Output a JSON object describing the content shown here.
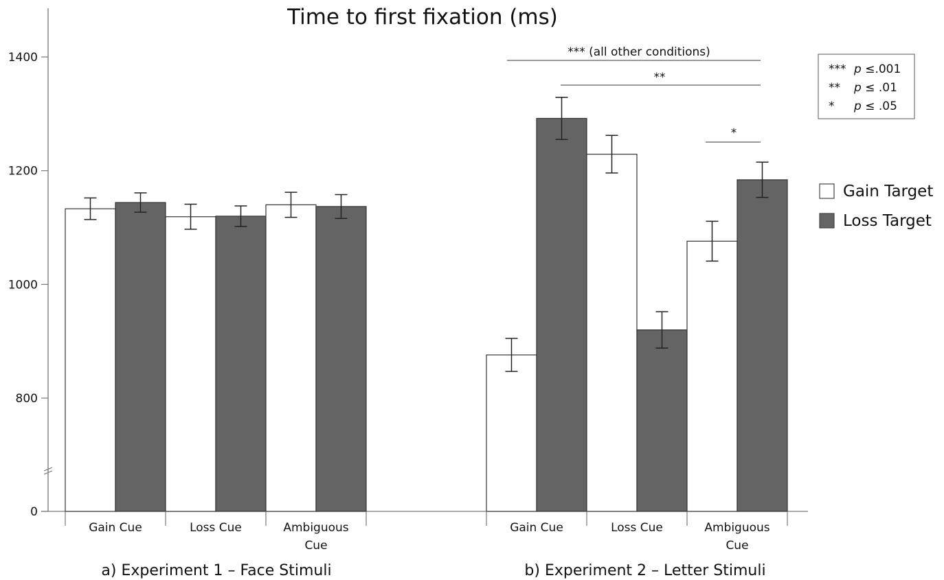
{
  "chart_data": {
    "type": "bar",
    "title": "Time to first fixation (ms)",
    "y_ticks": [
      "0",
      "800",
      "1000",
      "1200",
      "1400"
    ],
    "y_tick_values": [
      0,
      800,
      1000,
      1200,
      1400
    ],
    "axis_break": true,
    "grid": false,
    "legend_position": "right",
    "series": [
      {
        "name": "Gain Target",
        "color": "#ffffff"
      },
      {
        "name": "Loss Target",
        "color": "#646464"
      }
    ],
    "panels": [
      {
        "label": "a) Experiment 1 – Face Stimuli",
        "categories": [
          [
            "Gain Cue"
          ],
          [
            "Loss Cue"
          ],
          [
            "Ambiguous",
            "Cue"
          ]
        ],
        "values": {
          "Gain Target": [
            1133,
            1119,
            1140
          ],
          "Loss Target": [
            1144,
            1120,
            1137
          ]
        },
        "errors": {
          "Gain Target": [
            19,
            22,
            22
          ],
          "Loss Target": [
            17,
            18,
            21
          ]
        }
      },
      {
        "label": "b) Experiment 2 – Letter Stimuli",
        "categories": [
          [
            "Gain Cue"
          ],
          [
            "Loss Cue"
          ],
          [
            "Ambiguous",
            "Cue"
          ]
        ],
        "values": {
          "Gain Target": [
            876,
            1229,
            1076
          ],
          "Loss Target": [
            1292,
            920,
            1184
          ]
        },
        "errors": {
          "Gain Target": [
            29,
            33,
            35
          ],
          "Loss Target": [
            37,
            32,
            31
          ]
        }
      }
    ],
    "significance": [
      {
        "label": "*** (all other conditions)"
      },
      {
        "label": "**"
      },
      {
        "label": "*"
      }
    ],
    "p_legend": [
      {
        "stars": "***",
        "p": "p",
        "rest": " ≤.001"
      },
      {
        "stars": "**",
        "p": "p",
        "rest": " ≤ .01"
      },
      {
        "stars": "*",
        "p": "p",
        "rest": " ≤ .05"
      }
    ]
  }
}
